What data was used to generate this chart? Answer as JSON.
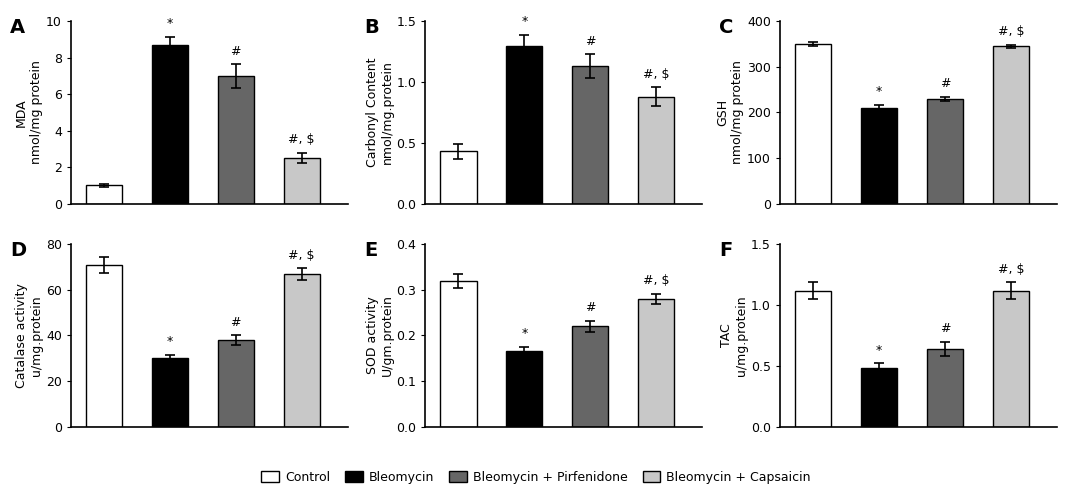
{
  "panels": [
    {
      "label": "A",
      "ylabel": "MDA\nnmol/mg protein",
      "ylim": [
        0,
        10
      ],
      "yticks": [
        0,
        2,
        4,
        6,
        8,
        10
      ],
      "values": [
        1.0,
        8.7,
        7.0,
        2.5
      ],
      "errors": [
        0.1,
        0.45,
        0.65,
        0.3
      ],
      "annotations": [
        "",
        "*",
        "#",
        "#, $"
      ]
    },
    {
      "label": "B",
      "ylabel": "Carbonyl Content\nnmol/mg.protein",
      "ylim": [
        0,
        1.5
      ],
      "yticks": [
        0.0,
        0.5,
        1.0,
        1.5
      ],
      "values": [
        0.43,
        1.3,
        1.13,
        0.88
      ],
      "errors": [
        0.06,
        0.09,
        0.1,
        0.08
      ],
      "annotations": [
        "",
        "*",
        "#",
        "#, $"
      ]
    },
    {
      "label": "C",
      "ylabel": "GSH\nnmol/mg protein",
      "ylim": [
        0,
        400
      ],
      "yticks": [
        0,
        100,
        200,
        300,
        400
      ],
      "values": [
        350,
        210,
        230,
        345
      ],
      "errors": [
        5,
        7,
        5,
        4
      ],
      "annotations": [
        "",
        "*",
        "#",
        "#, $"
      ]
    },
    {
      "label": "D",
      "ylabel": "Catalase activity\nu/mg.protein",
      "ylim": [
        0,
        80
      ],
      "yticks": [
        0,
        20,
        40,
        60,
        80
      ],
      "values": [
        71,
        30,
        38,
        67
      ],
      "errors": [
        3.5,
        1.5,
        2.0,
        2.5
      ],
      "annotations": [
        "",
        "*",
        "#",
        "#, $"
      ]
    },
    {
      "label": "E",
      "ylabel": "SOD activity\nU/gm.protein",
      "ylim": [
        0,
        0.4
      ],
      "yticks": [
        0.0,
        0.1,
        0.2,
        0.3,
        0.4
      ],
      "values": [
        0.32,
        0.165,
        0.22,
        0.28
      ],
      "errors": [
        0.015,
        0.01,
        0.012,
        0.012
      ],
      "annotations": [
        "",
        "*",
        "#",
        "#, $"
      ]
    },
    {
      "label": "F",
      "ylabel": "TAC\nu/mg.protein",
      "ylim": [
        0,
        1.5
      ],
      "yticks": [
        0.0,
        0.5,
        1.0,
        1.5
      ],
      "values": [
        1.12,
        0.48,
        0.64,
        1.12
      ],
      "errors": [
        0.07,
        0.04,
        0.06,
        0.07
      ],
      "annotations": [
        "",
        "*",
        "#",
        "#, $"
      ]
    }
  ],
  "bar_colors": [
    "white",
    "black",
    "#666666",
    "#c8c8c8"
  ],
  "bar_edgecolor": "black",
  "bar_width": 0.55,
  "x_positions": [
    0.5,
    1.5,
    2.5,
    3.5
  ],
  "xlim": [
    0,
    4.2
  ],
  "legend_labels": [
    "Control",
    "Bleomycin",
    "Bleomycin + Pirfenidone",
    "Bleomycin + Capsaicin"
  ],
  "legend_colors": [
    "white",
    "black",
    "#666666",
    "#c8c8c8"
  ],
  "annotation_fontsize": 9,
  "tick_fontsize": 9,
  "ylabel_fontsize": 9,
  "panel_label_fontsize": 14
}
